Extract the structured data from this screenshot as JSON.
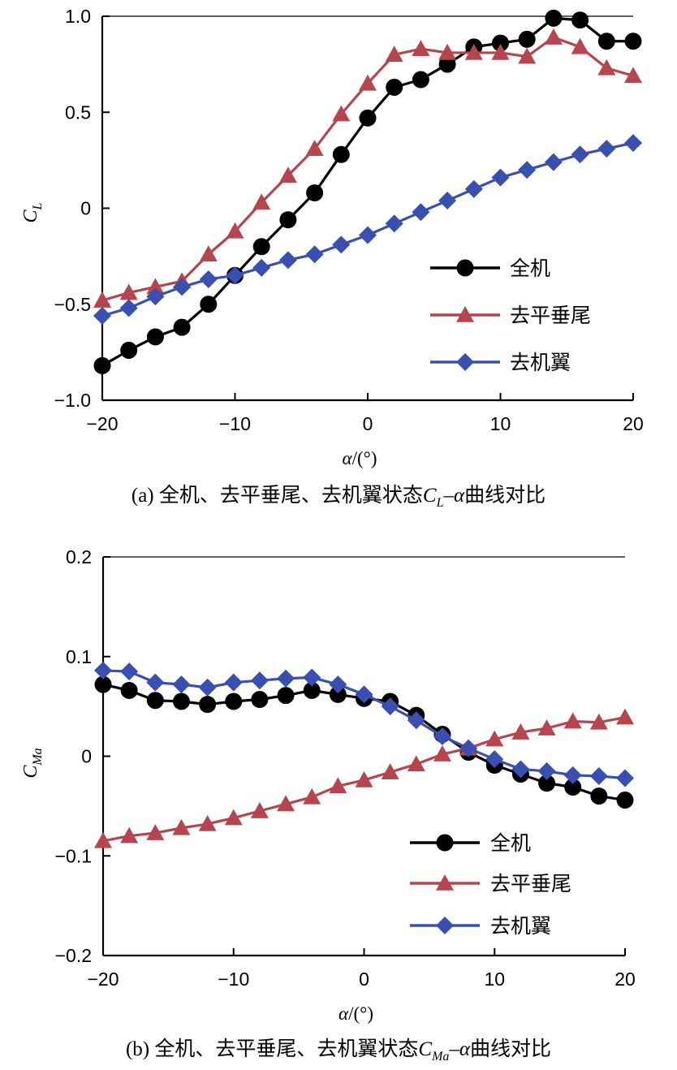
{
  "chart_data": [
    {
      "type": "line",
      "caption": {
        "prefix": "(a) 全机、去平垂尾、去机翼状态",
        "sym": "C",
        "sub": "L",
        "mid": "–",
        "alpha": "α",
        "suffix": "曲线对比"
      },
      "ylabel": {
        "sym": "C",
        "sub": "L"
      },
      "xlabel": {
        "alpha": "α",
        "unit": "/(°)"
      },
      "xlim": [
        -20,
        20
      ],
      "ylim": [
        -1.0,
        1.0
      ],
      "xticks": [
        "−20",
        "−10",
        "0",
        "10",
        "20"
      ],
      "yticks": [
        "−1.0",
        "−0.5",
        "0",
        "0.5",
        "1.0"
      ],
      "legend_position": "lower-right",
      "x": [
        -20,
        -18,
        -16,
        -14,
        -12,
        -10,
        -8,
        -6,
        -4,
        -2,
        0,
        2,
        4,
        6,
        8,
        10,
        12,
        14,
        16,
        18,
        20
      ],
      "series": [
        {
          "name": "全机",
          "color": "#000000",
          "marker": "circle",
          "values": [
            -0.82,
            -0.74,
            -0.67,
            -0.62,
            -0.5,
            -0.35,
            -0.2,
            -0.06,
            0.08,
            0.28,
            0.47,
            0.63,
            0.67,
            0.75,
            0.84,
            0.86,
            0.88,
            0.99,
            0.98,
            0.87,
            0.87
          ]
        },
        {
          "name": "去平垂尾",
          "color": "#b6454e",
          "marker": "triangle",
          "values": [
            -0.48,
            -0.44,
            -0.41,
            -0.38,
            -0.24,
            -0.12,
            0.03,
            0.17,
            0.31,
            0.49,
            0.65,
            0.8,
            0.83,
            0.81,
            0.81,
            0.81,
            0.79,
            0.89,
            0.84,
            0.73,
            0.69
          ]
        },
        {
          "name": "去机翼",
          "color": "#3a50b0",
          "marker": "diamond",
          "values": [
            -0.56,
            -0.52,
            -0.46,
            -0.41,
            -0.37,
            -0.35,
            -0.31,
            -0.27,
            -0.24,
            -0.19,
            -0.14,
            -0.08,
            -0.02,
            0.04,
            0.1,
            0.16,
            0.2,
            0.24,
            0.28,
            0.31,
            0.34
          ]
        }
      ]
    },
    {
      "type": "line",
      "caption": {
        "prefix": "(b) 全机、去平垂尾、去机翼状态",
        "sym": "C",
        "sub": "Ma",
        "mid": "–",
        "alpha": "α",
        "suffix": "曲线对比"
      },
      "ylabel": {
        "sym": "C",
        "sub": "Ma"
      },
      "xlabel": {
        "alpha": "α",
        "unit": "/(°)"
      },
      "xlim": [
        -20,
        20
      ],
      "ylim": [
        -0.2,
        0.2
      ],
      "xticks": [
        "−20",
        "−10",
        "0",
        "10",
        "20"
      ],
      "yticks": [
        "−0.2",
        "−0.1",
        "0",
        "0.1",
        "0.2"
      ],
      "legend_position": "lower-right",
      "x": [
        -20,
        -18,
        -16,
        -14,
        -12,
        -10,
        -8,
        -6,
        -4,
        -2,
        0,
        2,
        4,
        6,
        8,
        10,
        12,
        14,
        16,
        18,
        20
      ],
      "series": [
        {
          "name": "全机",
          "color": "#000000",
          "marker": "circle",
          "values": [
            0.072,
            0.066,
            0.056,
            0.055,
            0.052,
            0.055,
            0.057,
            0.061,
            0.066,
            0.062,
            0.058,
            0.055,
            0.041,
            0.022,
            0.004,
            -0.009,
            -0.018,
            -0.027,
            -0.031,
            -0.04,
            -0.044
          ]
        },
        {
          "name": "去平垂尾",
          "color": "#b6454e",
          "marker": "triangle",
          "values": [
            -0.085,
            -0.08,
            -0.077,
            -0.072,
            -0.068,
            -0.062,
            -0.055,
            -0.048,
            -0.041,
            -0.03,
            -0.024,
            -0.016,
            -0.008,
            0.002,
            0.008,
            0.017,
            0.024,
            0.028,
            0.035,
            0.034,
            0.039
          ]
        },
        {
          "name": "去机翼",
          "color": "#3a50b0",
          "marker": "diamond",
          "values": [
            0.086,
            0.085,
            0.074,
            0.072,
            0.069,
            0.074,
            0.076,
            0.078,
            0.079,
            0.072,
            0.062,
            0.05,
            0.036,
            0.02,
            0.008,
            -0.003,
            -0.013,
            -0.015,
            -0.019,
            -0.02,
            -0.022
          ]
        }
      ]
    }
  ]
}
